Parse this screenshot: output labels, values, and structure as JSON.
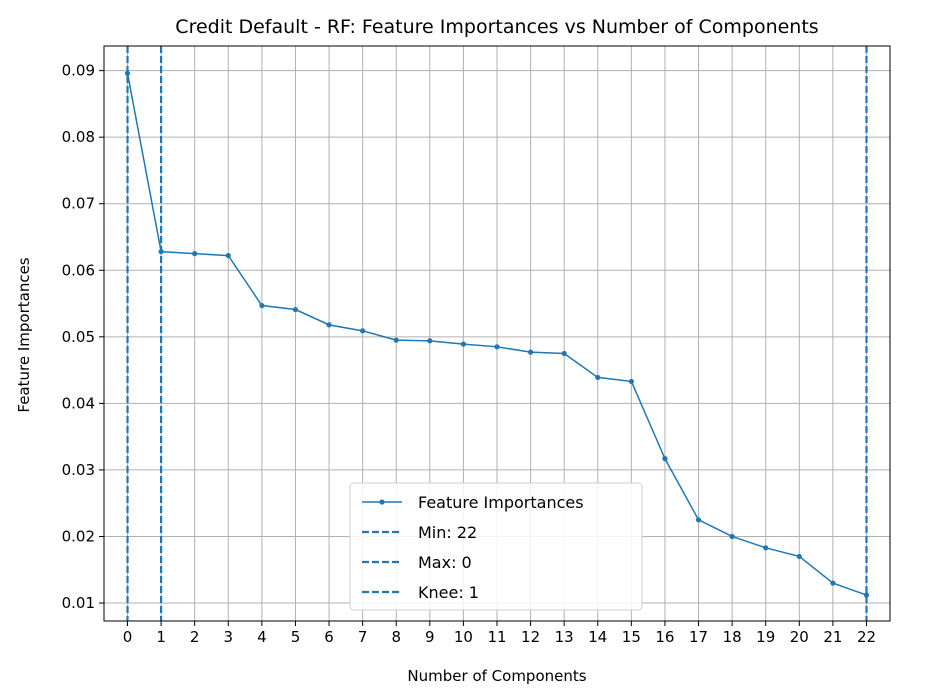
{
  "chart_data": {
    "type": "line",
    "title": "Credit Default - RF: Feature Importances vs Number of Components",
    "xlabel": "Number of Components",
    "ylabel": "Feature Importances",
    "x": [
      0,
      1,
      2,
      3,
      4,
      5,
      6,
      7,
      8,
      9,
      10,
      11,
      12,
      13,
      14,
      15,
      16,
      17,
      18,
      19,
      20,
      21,
      22
    ],
    "xlim": [
      -0.7,
      22.7
    ],
    "ylim": [
      0.0073,
      0.0937
    ],
    "yticks": [
      0.01,
      0.02,
      0.03,
      0.04,
      0.05,
      0.06,
      0.07,
      0.08,
      0.09
    ],
    "ytick_labels": [
      "0.01",
      "0.02",
      "0.03",
      "0.04",
      "0.05",
      "0.06",
      "0.07",
      "0.08",
      "0.09"
    ],
    "grid": true,
    "series": [
      {
        "name": "Feature Importances",
        "color": "#1f77b4",
        "values": [
          0.0896,
          0.0628,
          0.0625,
          0.0622,
          0.0547,
          0.0541,
          0.0518,
          0.0509,
          0.0495,
          0.0494,
          0.0489,
          0.0485,
          0.0477,
          0.0475,
          0.0439,
          0.0433,
          0.0317,
          0.0225,
          0.02,
          0.0183,
          0.017,
          0.013,
          0.0112
        ]
      }
    ],
    "vlines": [
      {
        "name": "Min: 22",
        "x": 22,
        "color": "#1f77b4"
      },
      {
        "name": "Max: 0",
        "x": 0,
        "color": "#1f77b4"
      },
      {
        "name": "Knee: 1",
        "x": 1,
        "color": "#1f77b4"
      }
    ],
    "legend": {
      "position": "lower-center",
      "entries": [
        "Feature Importances",
        "Min: 22",
        "Max: 0",
        "Knee: 1"
      ]
    }
  }
}
